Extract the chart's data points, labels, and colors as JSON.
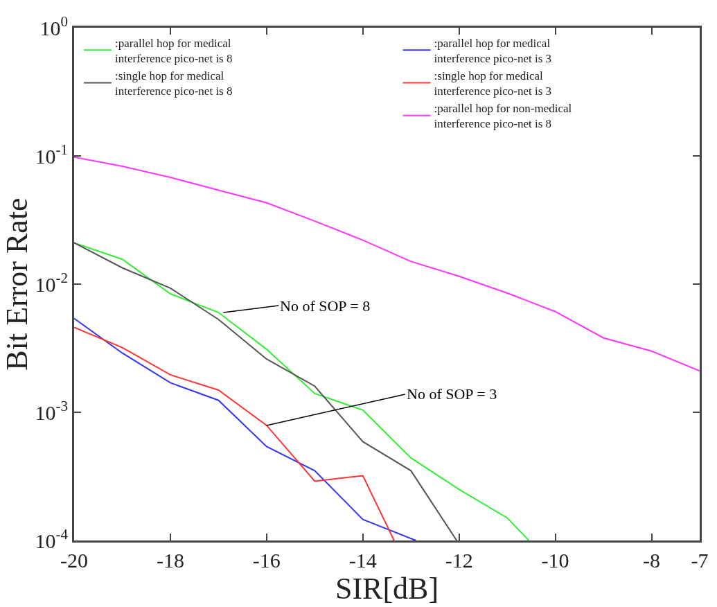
{
  "chart_data": {
    "type": "line",
    "xlabel": "SIR[dB]",
    "ylabel": "Bit Error Rate",
    "log": "y",
    "legend": "top",
    "marker": "none",
    "line_style": "solid",
    "xlim": [
      -20,
      -7
    ],
    "xticks": [
      -20,
      -18,
      -16,
      -14,
      -12,
      -10,
      -8,
      -7
    ],
    "ylim": [
      0.0001,
      1
    ],
    "yticks": [
      {
        "value": 0.0001,
        "label": "10$^{-4}$"
      },
      {
        "value": 0.001,
        "label": "10$^{-3}$"
      },
      {
        "value": 0.01,
        "label": "10$^{-2}$"
      },
      {
        "value": 0.1,
        "label": "10$^{-1}$"
      },
      {
        "value": 1,
        "label": "10$^{0}$"
      }
    ],
    "series": [
      {
        "name": ":parallel hop for medical\ninterference pico-net is 8",
        "color": "#33ee33",
        "x": [
          -20,
          -19,
          -18,
          -17,
          -16,
          -15,
          -14,
          -13,
          -12,
          -11,
          -10.55
        ],
        "values": [
          0.021,
          0.0156,
          0.0084,
          0.006,
          0.0031,
          0.0014,
          0.00104,
          0.00044,
          0.00025,
          0.00015,
          0.0001
        ]
      },
      {
        "name": ":single hop for medical\ninterference pico-net is 8",
        "color": "#555555",
        "x": [
          -20,
          -19,
          -18,
          -17,
          -16,
          -15,
          -14,
          -13,
          -12.05
        ],
        "values": [
          0.021,
          0.0134,
          0.0093,
          0.0053,
          0.0026,
          0.0016,
          0.00059,
          0.00035,
          0.0001
        ]
      },
      {
        "name": ":parallel hop for medical\ninterference pico-net is 3",
        "color": "#3333ff",
        "x": [
          -20,
          -19,
          -18,
          -17,
          -16,
          -15,
          -14,
          -12.9
        ],
        "values": [
          0.0054,
          0.0029,
          0.0017,
          0.00124,
          0.00054,
          0.00035,
          0.000146,
          0.0001
        ]
      },
      {
        "name": ":single hop for medical\ninterference pico-net is 3",
        "color": "#ff3333",
        "x": [
          -20,
          -19,
          -18,
          -17,
          -16,
          -15,
          -14,
          -13.35
        ],
        "values": [
          0.0046,
          0.0032,
          0.00196,
          0.00149,
          0.00079,
          0.00029,
          0.00032,
          0.0001
        ]
      },
      {
        "name": ":parallel hop for non-medical\ninterference pico-net is 8",
        "color": "#ff33ff",
        "x": [
          -20,
          -19,
          -18,
          -17,
          -16,
          -15,
          -14,
          -13,
          -12,
          -11,
          -10,
          -9,
          -8,
          -7
        ],
        "values": [
          0.098,
          0.083,
          0.068,
          0.054,
          0.043,
          0.031,
          0.022,
          0.015,
          0.0115,
          0.0085,
          0.0061,
          0.0038,
          0.003,
          0.0021
        ]
      }
    ],
    "annotations": [
      {
        "text": "No of SOP = 8",
        "x": -16.9,
        "y": 0.006
      },
      {
        "text": "No of SOP = 3",
        "x": -16,
        "y": 0.00079
      }
    ]
  }
}
